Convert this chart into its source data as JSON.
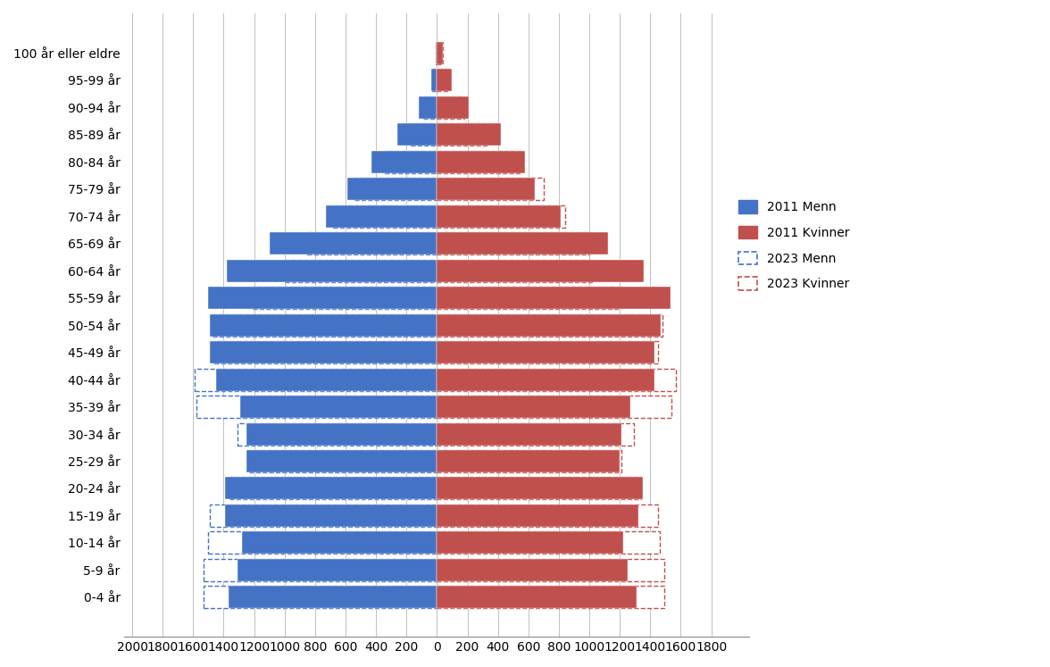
{
  "age_groups": [
    "0-4 år",
    "5-9 år",
    "10-14 år",
    "15-19 år",
    "20-24 år",
    "25-29 år",
    "30-34 år",
    "35-39 år",
    "40-44 år",
    "45-49 år",
    "50-54 år",
    "55-59 år",
    "60-64 år",
    "65-69 år",
    "70-74 år",
    "75-79 år",
    "80-84 år",
    "85-89 år",
    "90-94 år",
    "95-99 år",
    "100 år eller eldre"
  ],
  "men_2011": [
    1370,
    1310,
    1280,
    1390,
    1390,
    1250,
    1250,
    1290,
    1450,
    1490,
    1490,
    1500,
    1380,
    1100,
    730,
    590,
    430,
    260,
    120,
    40,
    8
  ],
  "women_2011": [
    1310,
    1250,
    1220,
    1320,
    1350,
    1200,
    1210,
    1270,
    1430,
    1430,
    1470,
    1530,
    1360,
    1120,
    810,
    640,
    580,
    420,
    210,
    100,
    40
  ],
  "men_2023": [
    1530,
    1530,
    1500,
    1490,
    1360,
    1230,
    1310,
    1580,
    1590,
    1460,
    1470,
    1210,
    1000,
    850,
    680,
    540,
    340,
    170,
    90,
    30,
    10
  ],
  "women_2023": [
    1490,
    1490,
    1460,
    1450,
    1340,
    1210,
    1290,
    1540,
    1570,
    1450,
    1480,
    1200,
    1020,
    1000,
    840,
    700,
    550,
    325,
    180,
    75,
    40
  ],
  "color_men_2011": "#4472C4",
  "color_women_2011": "#C0504D",
  "color_men_2023_edge": "#4472C4",
  "color_women_2023_edge": "#C0504D",
  "background_color": "#FFFFFF",
  "xlim": [
    -2050,
    2050
  ],
  "xticks": [
    -2000,
    -1800,
    -1600,
    -1400,
    -1200,
    -1000,
    -800,
    -600,
    -400,
    -200,
    0,
    200,
    400,
    600,
    800,
    1000,
    1200,
    1400,
    1600,
    1800
  ],
  "xtick_labels": [
    "2000",
    "1800",
    "1600",
    "1400",
    "1200",
    "1000",
    "800",
    "600",
    "400",
    "200",
    "0",
    "200",
    "400",
    "600",
    "800",
    "1000",
    "1200",
    "1400",
    "1600",
    "1800"
  ],
  "legend_labels": [
    "2011 Menn",
    "2011 Kvinner",
    "2023 Menn",
    "2023 Kvinner"
  ]
}
